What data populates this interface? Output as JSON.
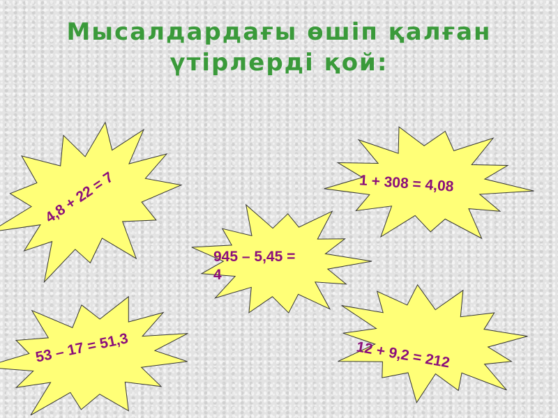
{
  "slide": {
    "title_line1": "Мысалдардағы өшіп қалған",
    "title_line2": "үтірлерді қой:",
    "colors": {
      "title": "#3a9a3a",
      "burst_fill": "#ffff77",
      "equation_text": "#8b0f7a"
    },
    "bursts": [
      {
        "equation": "4,8 + 22 = 7"
      },
      {
        "equation": "1 + 308 = 4,08"
      },
      {
        "equation_line1": "945 – 5,45 =",
        "equation_line2": "4"
      },
      {
        "equation": "53 – 17 = 51,3"
      },
      {
        "equation": "12 + 9,2 = 212"
      }
    ]
  }
}
